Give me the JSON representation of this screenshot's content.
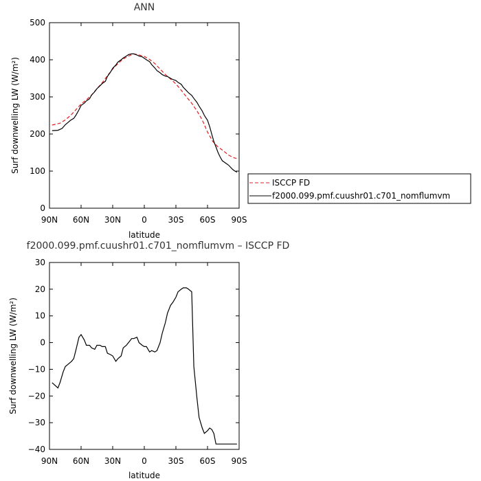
{
  "chart_data": [
    {
      "type": "line",
      "title": "ANN",
      "xlabel": "latitude",
      "ylabel": "Surf downwelling LW (W/m²)",
      "xlim": [
        90,
        -90
      ],
      "ylim": [
        0,
        500
      ],
      "x_ticks": [
        90,
        60,
        30,
        0,
        -30,
        -60,
        -90
      ],
      "x_tick_labels": [
        "90N",
        "60N",
        "30N",
        "0",
        "30S",
        "60S",
        "90S"
      ],
      "y_ticks": [
        0,
        100,
        200,
        300,
        400,
        500
      ],
      "y_tick_labels": [
        "0",
        "100",
        "200",
        "300",
        "400",
        "500"
      ],
      "legend_position": "right",
      "series": [
        {
          "name": "ISCCP FD",
          "color": "#e41a1c",
          "dash": "dashed",
          "x": [
            87.5,
            80,
            75,
            70,
            65,
            60,
            55,
            50,
            45,
            40,
            35,
            30,
            25,
            20,
            15,
            10,
            5,
            0,
            -5,
            -10,
            -15,
            -20,
            -25,
            -30,
            -35,
            -40,
            -45,
            -50,
            -55,
            -60,
            -65,
            -70,
            -75,
            -80,
            -85,
            -87.5
          ],
          "y": [
            224,
            229,
            238,
            250,
            265,
            281,
            292,
            305,
            322,
            338,
            357,
            375,
            390,
            402,
            410,
            416,
            413,
            409,
            401,
            390,
            375,
            360,
            348,
            335,
            318,
            300,
            283,
            262,
            238,
            205,
            180,
            165,
            155,
            143,
            136,
            134
          ]
        },
        {
          "name": "f2000.099.pmf.cuushr01.c701_nomflumvm",
          "color": "#000000",
          "dash": "solid",
          "x": [
            87.5,
            82,
            78,
            75,
            72,
            70,
            67,
            65,
            62,
            60,
            57,
            55,
            52,
            50,
            47,
            45,
            42,
            40,
            37,
            35,
            32,
            30,
            27,
            25,
            22,
            20,
            17,
            15,
            12,
            10,
            7,
            5,
            2,
            0,
            -2,
            -5,
            -7,
            -10,
            -12,
            -15,
            -17,
            -20,
            -22,
            -25,
            -27,
            -30,
            -32,
            -35,
            -37,
            -40,
            -42,
            -45,
            -47,
            -50,
            -52,
            -55,
            -57,
            -60,
            -62,
            -64,
            -66,
            -68,
            -70,
            -72,
            -74,
            -76,
            -78,
            -80,
            -82,
            -84,
            -86,
            -88
          ],
          "y": [
            209,
            210,
            215,
            225,
            232,
            237,
            242,
            250,
            265,
            277,
            283,
            289,
            295,
            305,
            314,
            322,
            330,
            336,
            342,
            355,
            367,
            377,
            386,
            394,
            400,
            405,
            410,
            414,
            416,
            416,
            413,
            410,
            408,
            404,
            400,
            395,
            387,
            378,
            371,
            365,
            360,
            356,
            355,
            350,
            347,
            344,
            339,
            334,
            326,
            317,
            311,
            304,
            296,
            285,
            275,
            262,
            250,
            237,
            220,
            200,
            180,
            165,
            150,
            138,
            128,
            124,
            120,
            116,
            110,
            104,
            100,
            97
          ]
        }
      ]
    },
    {
      "type": "line",
      "title": "f2000.099.pmf.cuushr01.c701_nomflumvm – ISCCP FD",
      "xlabel": "latitude",
      "ylabel": "Surf downwelling LW (W/m²)",
      "xlim": [
        90,
        -90
      ],
      "ylim": [
        -40,
        30
      ],
      "x_ticks": [
        90,
        60,
        30,
        0,
        -30,
        -60,
        -90
      ],
      "x_tick_labels": [
        "90N",
        "60N",
        "30N",
        "0",
        "30S",
        "60S",
        "90S"
      ],
      "y_ticks": [
        -40,
        -30,
        -20,
        -10,
        0,
        10,
        20,
        30
      ],
      "y_tick_labels": [
        "−40",
        "−30",
        "−20",
        "−10",
        "0",
        "10",
        "20",
        "30"
      ],
      "series": [
        {
          "color": "#000000",
          "dash": "solid",
          "x": [
            87.5,
            82,
            80,
            77,
            75,
            72,
            69,
            67,
            65,
            62,
            60,
            57,
            55,
            52,
            50,
            47,
            45,
            42,
            40,
            37,
            35,
            32,
            30,
            27,
            25,
            22,
            20,
            17,
            15,
            12,
            10,
            7,
            5,
            2,
            0,
            -2,
            -5,
            -7,
            -10,
            -12,
            -15,
            -17,
            -20,
            -22,
            -25,
            -27,
            -30,
            -32,
            -35,
            -37,
            -40,
            -42,
            -45,
            -47,
            -50,
            -52,
            -55,
            -57,
            -60,
            -62,
            -64,
            -66,
            -68,
            -70,
            -72,
            -74,
            -76,
            -78,
            -80,
            -82,
            -84,
            -86,
            -88
          ],
          "y": [
            -15,
            -17,
            -15,
            -11,
            -9,
            -8,
            -7,
            -6,
            -3,
            2,
            3,
            1,
            -1,
            -1,
            -2,
            -2.5,
            -1,
            -1,
            -1.5,
            -1.5,
            -4,
            -4.5,
            -5,
            -7,
            -6,
            -5,
            -2,
            -1,
            0,
            1.5,
            1.5,
            2,
            0,
            -1,
            -1.5,
            -1.5,
            -3.5,
            -3,
            -3.5,
            -3,
            0,
            3.5,
            7.5,
            11,
            14,
            15,
            17,
            19,
            20,
            20.5,
            20.5,
            20,
            19,
            -9,
            -21,
            -28,
            -32,
            -34,
            -33,
            -32,
            -32.5,
            -34,
            -38,
            -38,
            -38,
            -38,
            -38,
            -38,
            -38,
            -38,
            -38,
            -38,
            -38
          ]
        }
      ]
    }
  ]
}
